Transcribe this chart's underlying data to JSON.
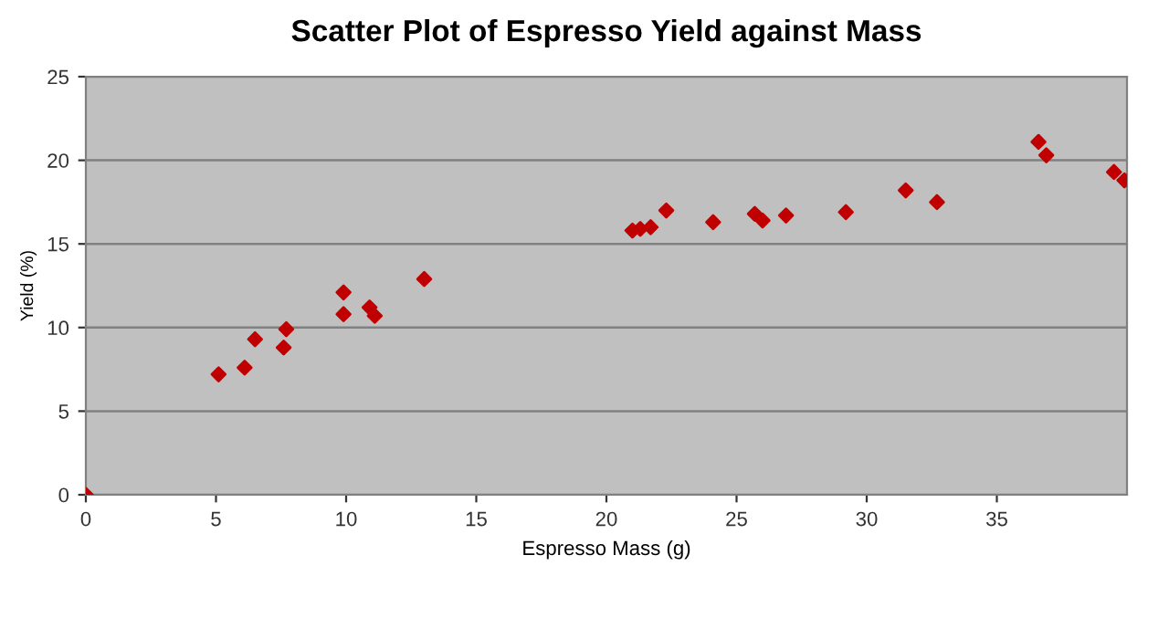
{
  "chart_data": {
    "type": "scatter",
    "title": "Scatter Plot of Espresso Yield against Mass",
    "xlabel": "Espresso Mass (g)",
    "ylabel": "Yield (%)",
    "series": [
      {
        "color": "#c00000",
        "x": [
          0,
          5.1,
          6.1,
          6.5,
          7.6,
          7.7,
          9.9,
          9.9,
          10.9,
          11.1,
          13.0,
          21.0,
          21.3,
          21.7,
          22.3,
          24.1,
          25.7,
          26.0,
          26.9,
          29.2,
          31.5,
          32.7,
          36.6,
          36.9,
          39.5,
          39.9
        ],
        "values": [
          0,
          7.2,
          7.6,
          9.3,
          8.8,
          9.9,
          10.8,
          12.1,
          11.2,
          10.7,
          12.9,
          15.8,
          15.9,
          16.0,
          17.0,
          16.3,
          16.8,
          16.4,
          16.7,
          16.9,
          18.2,
          17.5,
          21.1,
          20.3,
          19.3,
          18.8
        ]
      }
    ],
    "xlim": [
      0,
      40
    ],
    "xticks": [
      0,
      5,
      10,
      15,
      20,
      25,
      30,
      35
    ],
    "ylim": [
      0,
      25
    ],
    "yticks": [
      0,
      5,
      10,
      15,
      20,
      25
    ],
    "grid": "y",
    "marker": "diamond",
    "legend": false
  }
}
